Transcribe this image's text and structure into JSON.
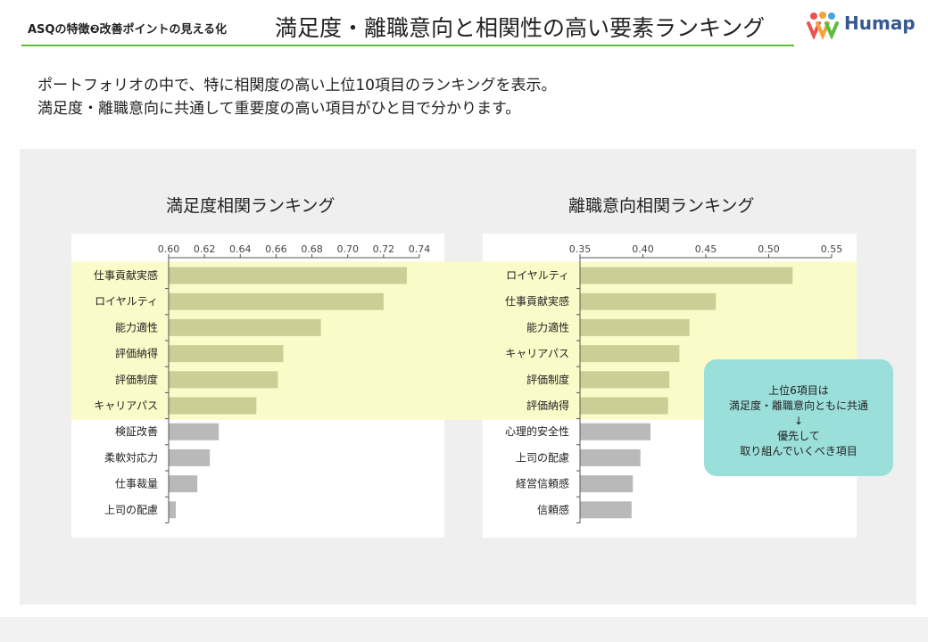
{
  "header": {
    "subtitle": "ASQの特徴❷改善ポイントの見える化",
    "title": "満足度・離職意向と相関性の高い要素ランキング",
    "logo_text": "Humap"
  },
  "intro": {
    "line1": "ポートフォリオの中で、特に相関度の高い上位10項目のランキングを表示。",
    "line2": "満足度・離職意向に共通して重要度の高い項目がひと目で分かります。"
  },
  "callout": {
    "line1": "上位6項目は",
    "line2": "満足度・離職意向ともに共通",
    "arrow": "↓",
    "line3": "優先して",
    "line4": "取り組んでいくべき項目"
  },
  "colors": {
    "highlight_bar": "#cdcd96",
    "other_bar": "#b9b9b9",
    "highlight_band": "#fbfbc9",
    "callout": "#9adfda",
    "header_rule": "#5bbd3b"
  },
  "chart_data": [
    {
      "type": "bar",
      "orientation": "horizontal",
      "title": "満足度相関ランキング",
      "categories": [
        "仕事貢献実感",
        "ロイヤルティ",
        "能力適性",
        "評価納得",
        "評価制度",
        "キャリアパス",
        "検証改善",
        "柔軟対応力",
        "仕事裁量",
        "上司の配慮"
      ],
      "values": [
        0.733,
        0.72,
        0.685,
        0.664,
        0.661,
        0.649,
        0.628,
        0.623,
        0.616,
        0.604
      ],
      "xlim": [
        0.6,
        0.74
      ],
      "ticks": [
        "0.60",
        "0.62",
        "0.64",
        "0.66",
        "0.68",
        "0.70",
        "0.72",
        "0.74"
      ],
      "highlighted_count": 6
    },
    {
      "type": "bar",
      "orientation": "horizontal",
      "title": "離職意向相関ランキング",
      "categories": [
        "ロイヤルティ",
        "仕事貢献実感",
        "能力適性",
        "キャリアパス",
        "評価制度",
        "評価納得",
        "心理的安全性",
        "上司の配慮",
        "経営信頼感",
        "信頼感"
      ],
      "values": [
        0.519,
        0.458,
        0.437,
        0.429,
        0.421,
        0.42,
        0.406,
        0.398,
        0.392,
        0.391
      ],
      "xlim": [
        0.35,
        0.55
      ],
      "ticks": [
        "0.35",
        "0.40",
        "0.45",
        "0.50",
        "0.55"
      ],
      "highlighted_count": 6
    }
  ]
}
